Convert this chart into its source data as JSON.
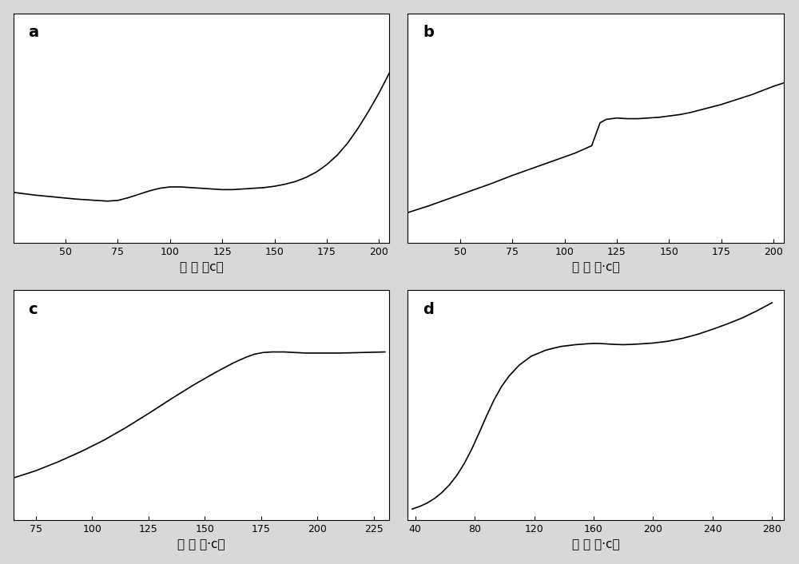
{
  "subplots": [
    {
      "label": "a",
      "xlabel": "温 度 （c）",
      "xlim": [
        25,
        205
      ],
      "ylim": [
        0.48,
        0.82
      ],
      "xticks": [
        50,
        75,
        100,
        125,
        150,
        175,
        200
      ],
      "curve": {
        "x": [
          25,
          35,
          45,
          55,
          65,
          70,
          75,
          80,
          85,
          90,
          95,
          100,
          105,
          110,
          115,
          120,
          125,
          130,
          135,
          140,
          145,
          150,
          155,
          160,
          165,
          170,
          175,
          180,
          185,
          190,
          195,
          200,
          205
        ],
        "y": [
          0.555,
          0.551,
          0.548,
          0.545,
          0.543,
          0.542,
          0.543,
          0.547,
          0.552,
          0.557,
          0.561,
          0.563,
          0.563,
          0.562,
          0.561,
          0.56,
          0.559,
          0.559,
          0.56,
          0.561,
          0.562,
          0.564,
          0.567,
          0.571,
          0.577,
          0.585,
          0.596,
          0.61,
          0.628,
          0.65,
          0.675,
          0.702,
          0.732
        ]
      }
    },
    {
      "label": "b",
      "xlabel": "温 度 （·c）",
      "xlim": [
        25,
        205
      ],
      "ylim": [
        0.26,
        0.6
      ],
      "xticks": [
        50,
        75,
        100,
        125,
        150,
        175,
        200
      ],
      "curve": {
        "x": [
          25,
          35,
          45,
          55,
          65,
          75,
          85,
          95,
          105,
          113,
          117,
          120,
          125,
          130,
          135,
          140,
          145,
          150,
          155,
          160,
          165,
          170,
          175,
          180,
          185,
          190,
          195,
          200,
          205
        ],
        "y": [
          0.305,
          0.315,
          0.326,
          0.337,
          0.348,
          0.36,
          0.371,
          0.382,
          0.393,
          0.404,
          0.438,
          0.443,
          0.445,
          0.444,
          0.444,
          0.445,
          0.446,
          0.448,
          0.45,
          0.453,
          0.457,
          0.461,
          0.465,
          0.47,
          0.475,
          0.48,
          0.486,
          0.492,
          0.497
        ]
      }
    },
    {
      "label": "c",
      "xlabel": "温 度 （·c）",
      "xlim": [
        65,
        232
      ],
      "ylim": [
        0.14,
        0.55
      ],
      "xticks": [
        75,
        100,
        125,
        150,
        175,
        200,
        225
      ],
      "curve": {
        "x": [
          65,
          75,
          85,
          95,
          105,
          115,
          125,
          135,
          145,
          155,
          163,
          168,
          172,
          176,
          180,
          185,
          190,
          195,
          200,
          210,
          220,
          230
        ],
        "y": [
          0.215,
          0.228,
          0.244,
          0.262,
          0.282,
          0.305,
          0.33,
          0.356,
          0.381,
          0.404,
          0.421,
          0.43,
          0.436,
          0.439,
          0.44,
          0.44,
          0.439,
          0.438,
          0.438,
          0.438,
          0.439,
          0.44
        ]
      }
    },
    {
      "label": "d",
      "xlabel": "温 度 （·c）",
      "xlim": [
        35,
        288
      ],
      "ylim": [
        0.0,
        1.15
      ],
      "xticks": [
        40,
        80,
        120,
        160,
        200,
        240,
        280
      ],
      "curve": {
        "x": [
          38,
          43,
          48,
          53,
          58,
          63,
          68,
          73,
          78,
          83,
          88,
          93,
          98,
          103,
          110,
          118,
          128,
          138,
          148,
          155,
          160,
          163,
          166,
          170,
          175,
          180,
          185,
          192,
          200,
          210,
          220,
          230,
          240,
          250,
          260,
          270,
          280
        ],
        "y": [
          0.055,
          0.068,
          0.085,
          0.108,
          0.138,
          0.176,
          0.224,
          0.283,
          0.355,
          0.437,
          0.522,
          0.601,
          0.668,
          0.72,
          0.776,
          0.82,
          0.851,
          0.869,
          0.878,
          0.882,
          0.884,
          0.884,
          0.883,
          0.881,
          0.879,
          0.878,
          0.879,
          0.882,
          0.886,
          0.895,
          0.91,
          0.93,
          0.955,
          0.982,
          1.012,
          1.048,
          1.088
        ]
      }
    }
  ],
  "bg_color": "#d8d8d8",
  "line_color": "#000000",
  "line_width": 1.2,
  "label_fontsize": 14,
  "tick_fontsize": 9,
  "xlabel_fontsize": 11
}
